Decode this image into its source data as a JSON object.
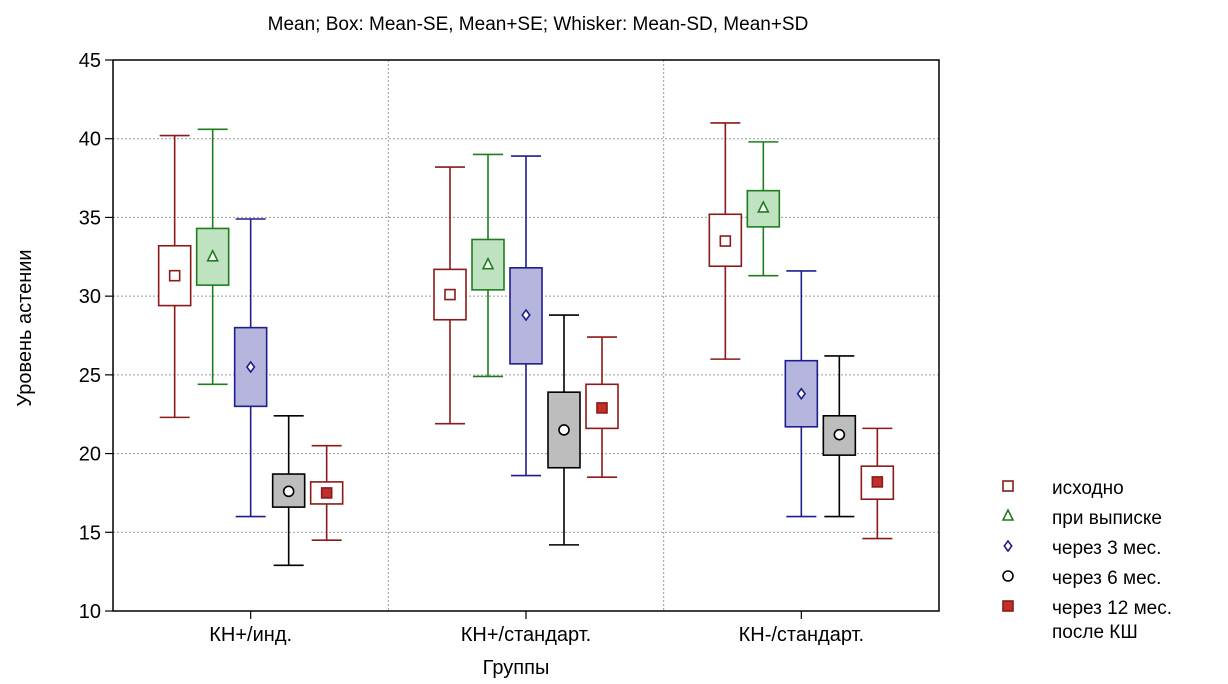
{
  "chart_data": {
    "type": "box",
    "title": "Mean; Box: Mean-SE, Mean+SE; Whisker: Mean-SD, Mean+SD",
    "xlabel": "Группы",
    "ylabel": "Уровень астении",
    "ylim": [
      10,
      45
    ],
    "yticks": [
      10,
      15,
      20,
      25,
      30,
      35,
      40,
      45
    ],
    "grid": true,
    "legend_position": "right",
    "categories": [
      "КН+/инд.",
      "КН+/стандарт.",
      "КН-/стандарт."
    ],
    "series": [
      {
        "name": "исходно",
        "marker": "square-open",
        "color": "#8b1a1a",
        "box_fill": "#ffffff",
        "marker_fill": "#ffffff",
        "stats": [
          {
            "mean": 31.3,
            "se_low": 29.4,
            "se_high": 33.2,
            "sd_low": 22.3,
            "sd_high": 40.2
          },
          {
            "mean": 30.1,
            "se_low": 28.5,
            "se_high": 31.7,
            "sd_low": 21.9,
            "sd_high": 38.2
          },
          {
            "mean": 33.5,
            "se_low": 31.9,
            "se_high": 35.2,
            "sd_low": 26.0,
            "sd_high": 41.0
          }
        ]
      },
      {
        "name": "при выписке",
        "marker": "triangle-open",
        "color": "#1e7d1e",
        "box_fill": "#bfe3c0",
        "marker_fill": "#ffffff",
        "stats": [
          {
            "mean": 32.5,
            "se_low": 30.7,
            "se_high": 34.3,
            "sd_low": 24.4,
            "sd_high": 40.6
          },
          {
            "mean": 32.0,
            "se_low": 30.4,
            "se_high": 33.6,
            "sd_low": 24.9,
            "sd_high": 39.0
          },
          {
            "mean": 35.6,
            "se_low": 34.4,
            "se_high": 36.7,
            "sd_low": 31.3,
            "sd_high": 39.8
          }
        ]
      },
      {
        "name": "через 3 мес.",
        "marker": "diamond-open",
        "color": "#1e1e8c",
        "box_fill": "#b5b5de",
        "marker_fill": "#ffffff",
        "stats": [
          {
            "mean": 25.5,
            "se_low": 23.0,
            "se_high": 28.0,
            "sd_low": 16.0,
            "sd_high": 34.9
          },
          {
            "mean": 28.8,
            "se_low": 25.7,
            "se_high": 31.8,
            "sd_low": 18.6,
            "sd_high": 38.9
          },
          {
            "mean": 23.8,
            "se_low": 21.7,
            "se_high": 25.9,
            "sd_low": 16.0,
            "sd_high": 31.6
          }
        ]
      },
      {
        "name": "через 6 мес.",
        "marker": "circle-open",
        "color": "#000000",
        "box_fill": "#bdbdbd",
        "marker_fill": "#ffffff",
        "stats": [
          {
            "mean": 17.6,
            "se_low": 16.6,
            "se_high": 18.7,
            "sd_low": 12.9,
            "sd_high": 22.4
          },
          {
            "mean": 21.5,
            "se_low": 19.1,
            "se_high": 23.9,
            "sd_low": 14.2,
            "sd_high": 28.8
          },
          {
            "mean": 21.2,
            "se_low": 19.9,
            "se_high": 22.4,
            "sd_low": 16.0,
            "sd_high": 26.2
          }
        ]
      },
      {
        "name": "через 12 мес. после КШ",
        "legend_lines": [
          "через 12 мес.",
          "после КШ"
        ],
        "marker": "square-filled",
        "color": "#8b1a1a",
        "box_fill": "#ffffff",
        "marker_fill": "#c0302a",
        "stats": [
          {
            "mean": 17.5,
            "se_low": 16.8,
            "se_high": 18.2,
            "sd_low": 14.5,
            "sd_high": 20.5
          },
          {
            "mean": 22.9,
            "se_low": 21.6,
            "se_high": 24.4,
            "sd_low": 18.5,
            "sd_high": 27.4
          },
          {
            "mean": 18.2,
            "se_low": 17.1,
            "se_high": 19.2,
            "sd_low": 14.6,
            "sd_high": 21.6
          }
        ]
      }
    ]
  }
}
